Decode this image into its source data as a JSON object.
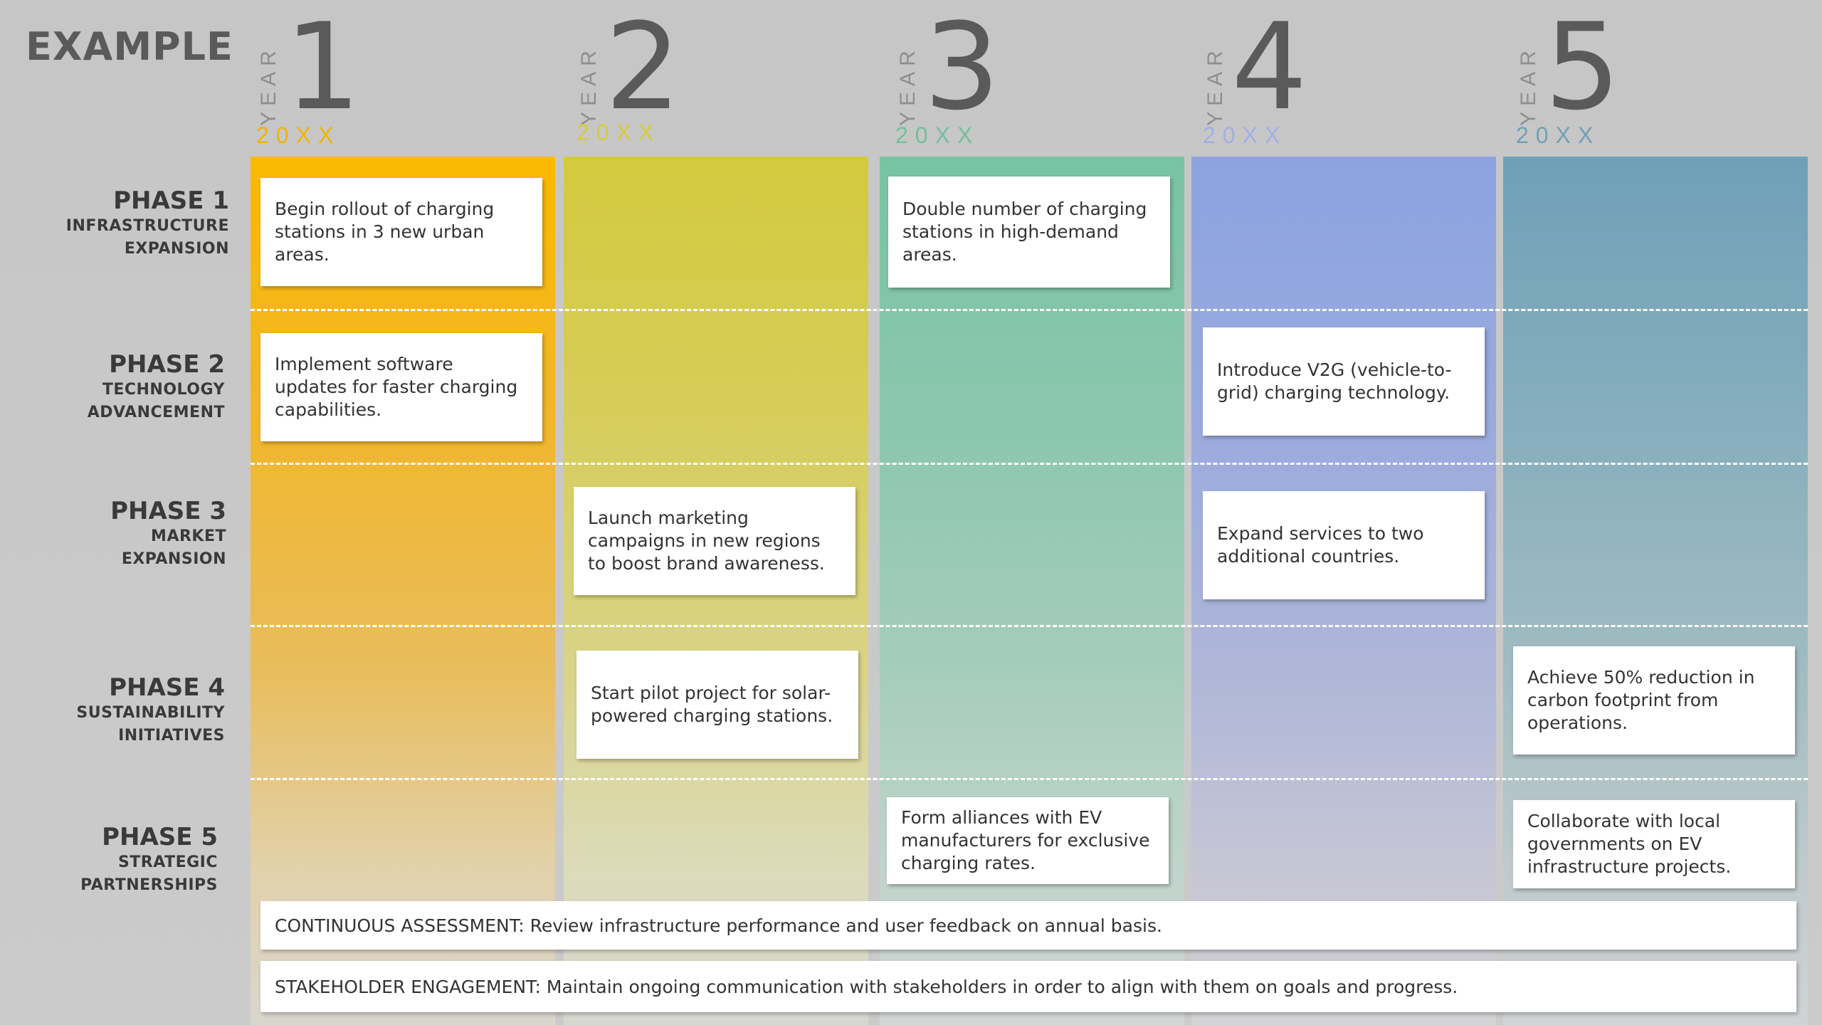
{
  "title": "EXAMPLE",
  "year_word": "YEAR",
  "years": [
    {
      "num": "1",
      "sub": "20XX",
      "color": "#f0b400"
    },
    {
      "num": "2",
      "sub": "20XX",
      "color": "#d4cc3c"
    },
    {
      "num": "3",
      "sub": "20XX",
      "color": "#73c09c"
    },
    {
      "num": "4",
      "sub": "20XX",
      "color": "#9fb1e6"
    },
    {
      "num": "5",
      "sub": "20XX",
      "color": "#6fa1b7"
    }
  ],
  "phases": [
    {
      "title": "PHASE 1",
      "line1": "INFRASTRUCTURE",
      "line2": "EXPANSION"
    },
    {
      "title": "PHASE 2",
      "line1": "TECHNOLOGY",
      "line2": "ADVANCEMENT"
    },
    {
      "title": "PHASE 3",
      "line1": "MARKET",
      "line2": "EXPANSION"
    },
    {
      "title": "PHASE 4",
      "line1": "SUSTAINABILITY",
      "line2": "INITIATIVES"
    },
    {
      "title": "PHASE 5",
      "line1": "STRATEGIC",
      "line2": "PARTNERSHIPS"
    }
  ],
  "cards": {
    "p1_y1": "Begin rollout of charging stations in 3 new urban areas.",
    "p1_y3": "Double number of charging stations in high-demand areas.",
    "p2_y1": "Implement software updates for faster charging capabilities.",
    "p2_y4": "Introduce V2G (vehicle-to-grid) charging technology.",
    "p3_y2": "Launch marketing campaigns in new regions to boost brand awareness.",
    "p3_y4": "Expand services to two additional countries.",
    "p4_y2": "Start pilot project for solar-powered charging stations.",
    "p4_y5": "Achieve 50% reduction in carbon footprint from operations.",
    "p5_y3": "Form alliances with EV manufacturers for exclusive charging rates.",
    "p5_y5": "Collaborate with local governments on EV infrastructure projects."
  },
  "bars": {
    "assessment": "CONTINUOUS ASSESSMENT: Review infrastructure performance and user feedback on annual basis.",
    "engagement": "STAKEHOLDER ENGAGEMENT: Maintain ongoing communication with stakeholders in order to align with them on goals and progress."
  },
  "colors": {
    "year1": "#fbb900",
    "year2": "#d3ca3e",
    "year3": "#78c4a2",
    "year4": "#8ba3e0",
    "year5": "#6fa0b8",
    "background": "#c8c8c8"
  }
}
